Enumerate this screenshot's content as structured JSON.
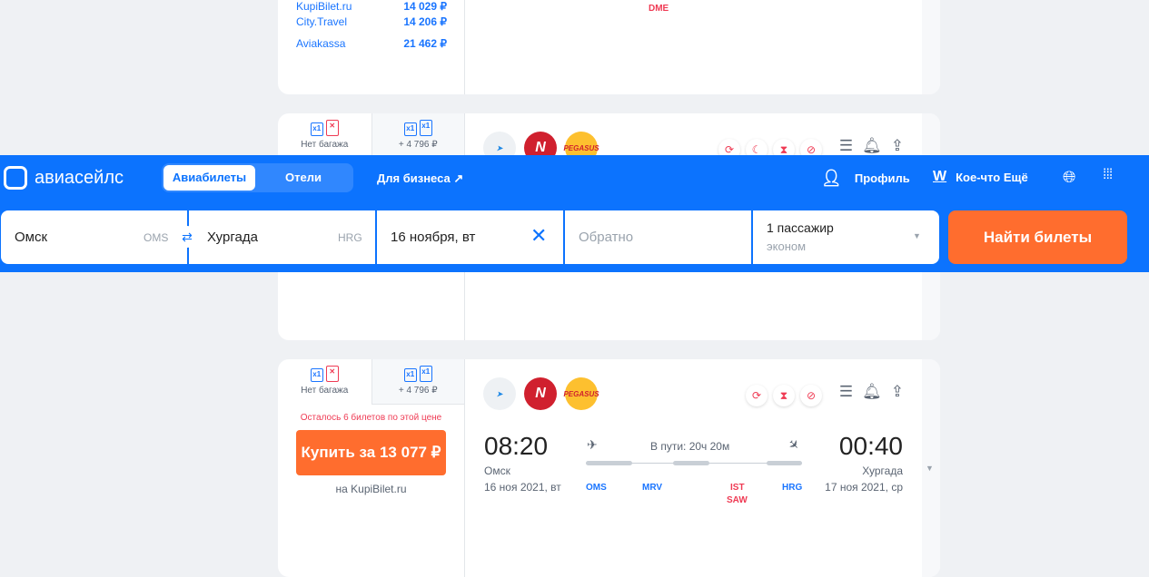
{
  "card1": {
    "agencies": [
      {
        "name": "KupiBilet.ru",
        "price": "14 029 ₽"
      },
      {
        "name": "City.Travel",
        "price": "14 206 ₽"
      },
      {
        "name": "Aviakassa",
        "price": "21 462 ₽"
      }
    ],
    "airport": "DME"
  },
  "baggage": {
    "no_bag": "Нет багажа",
    "with_bag": "+ 4 796 ₽",
    "x1": "x1",
    "x": "✕"
  },
  "airlines": [
    {
      "name": "Pegasus",
      "label": "PEGASUS"
    }
  ],
  "header": {
    "logo": "авиасейлс",
    "tabs": [
      "Авиабилеты",
      "Отели"
    ],
    "business": "Для бизнеса ↗",
    "profile": "Профиль",
    "more": "Кое-что Ещё"
  },
  "search": {
    "from": "Омск",
    "from_iata": "OMS",
    "to": "Хургада",
    "to_iata": "HRG",
    "date": "16 ноября, вт",
    "return_placeholder": "Обратно",
    "passengers": "1 пассажир",
    "class": "эконом",
    "submit": "Найти билеты"
  },
  "ticket": {
    "left_notice": "Осталось 6 билетов по этой цене",
    "buy": "Купить за 13 077 ₽",
    "agency": "на KupiBilet.ru",
    "dep_time": "08:20",
    "dep_city": "Омск",
    "dep_date": "16 ноя 2021, вт",
    "arr_time": "00:40",
    "arr_city": "Хургада",
    "arr_date": "17 ноя 2021, ср",
    "duration": "В пути: 20ч 20м",
    "stops": [
      "OMS",
      "MRV",
      "IST",
      "SAW",
      "HRG"
    ]
  },
  "colors": {
    "brand": "#0c73fe",
    "accent": "#ff6d2e",
    "alert": "#ef3b54"
  }
}
